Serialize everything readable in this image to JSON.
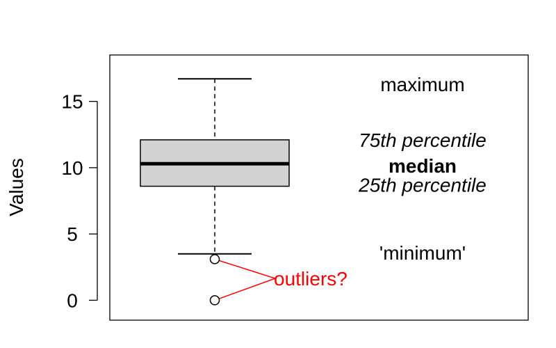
{
  "chart_data": {
    "type": "box",
    "ylabel": "Values",
    "xlabel": "",
    "title": "",
    "ylim": [
      -1.5,
      18.5
    ],
    "yticks": [
      0,
      5,
      10,
      15
    ],
    "box": {
      "whisker_low": 3.5,
      "q1": 8.6,
      "median": 10.3,
      "q3": 12.1,
      "whisker_high": 16.7,
      "outliers": [
        3.1,
        0.0
      ]
    },
    "annotations": {
      "maximum": "maximum",
      "q3": "75th percentile",
      "median": "median",
      "q1": "25th percentile",
      "minimum": "'minimum'",
      "outliers": "outliers?"
    },
    "colors": {
      "box_fill": "#d3d3d3",
      "outlier_annotation": "#ff0000",
      "axis": "#000000"
    }
  }
}
